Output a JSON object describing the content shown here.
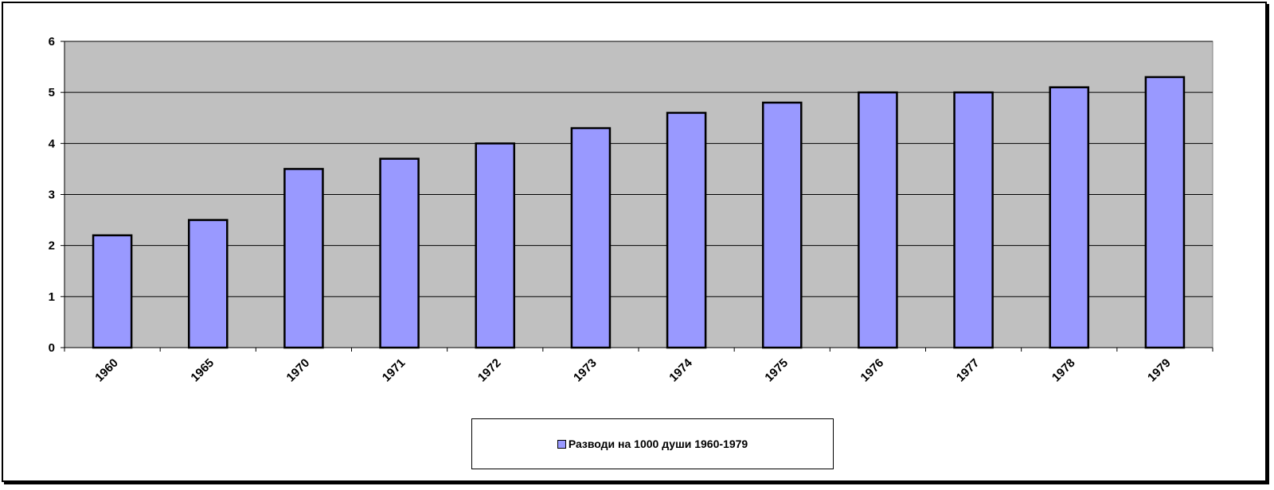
{
  "chart_data": {
    "type": "bar",
    "categories": [
      "1960",
      "1965",
      "1970",
      "1971",
      "1972",
      "1973",
      "1974",
      "1975",
      "1976",
      "1977",
      "1978",
      "1979"
    ],
    "series": [
      {
        "name": "Разводи на 1000 души 1960-1979",
        "values": [
          2.2,
          2.5,
          3.5,
          3.7,
          4.0,
          4.3,
          4.6,
          4.8,
          5.0,
          5.0,
          5.1,
          5.3
        ]
      }
    ],
    "yticks": [
      "0",
      "1",
      "2",
      "3",
      "4",
      "5",
      "6"
    ],
    "ylim": [
      0,
      6
    ],
    "grid": true,
    "legend_position": "bottom",
    "colors": {
      "bar": "#9999ff",
      "plot_background": "#c0c0c0",
      "gridline": "#000000"
    }
  }
}
